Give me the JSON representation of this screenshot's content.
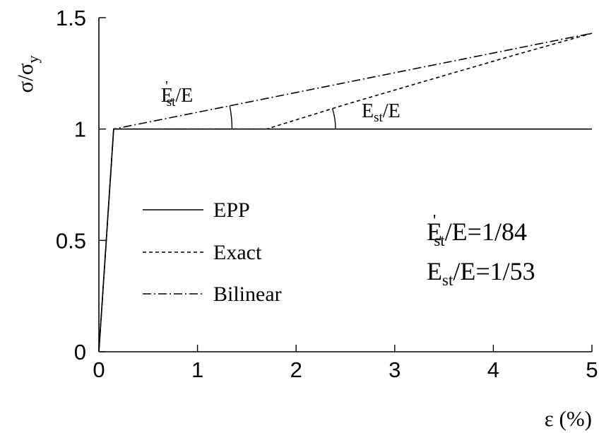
{
  "chart_data": {
    "type": "line",
    "xlabel": "ε (%)",
    "ylabel": "σ/σy",
    "xlim": [
      0,
      5
    ],
    "ylim": [
      0,
      1.5
    ],
    "x_ticks": [
      "0",
      "1",
      "2",
      "3",
      "4",
      "5"
    ],
    "y_ticks": [
      "0",
      "0.5",
      "1",
      "1.5"
    ],
    "grid": false,
    "legend_position": "center-left",
    "series": [
      {
        "name": "EPP",
        "style": "solid",
        "x": [
          0,
          0.15,
          5
        ],
        "y": [
          0,
          1,
          1
        ]
      },
      {
        "name": "Exact",
        "style": "dashed",
        "x": [
          0,
          0.15,
          1.7,
          2.5,
          3.5,
          4.2,
          5
        ],
        "y": [
          0,
          1,
          1,
          1.11,
          1.24,
          1.33,
          1.43
        ]
      },
      {
        "name": "Bilinear",
        "style": "dashdot",
        "x": [
          0,
          0.15,
          5
        ],
        "y": [
          0,
          1,
          1.43
        ]
      }
    ],
    "annotations": [
      {
        "id": "est_prime_label",
        "text_main": "E",
        "sup": "'",
        "sub": "st",
        "tail": "/E"
      },
      {
        "id": "est_label",
        "text_main": "E",
        "sub": "st",
        "tail": "/E"
      },
      {
        "id": "ratio1",
        "text_main": "E",
        "sup": "'",
        "sub": "st",
        "tail": "/E=1/84"
      },
      {
        "id": "ratio2",
        "text_main": "E",
        "sub": "st",
        "tail": "/E=1/53"
      }
    ]
  }
}
